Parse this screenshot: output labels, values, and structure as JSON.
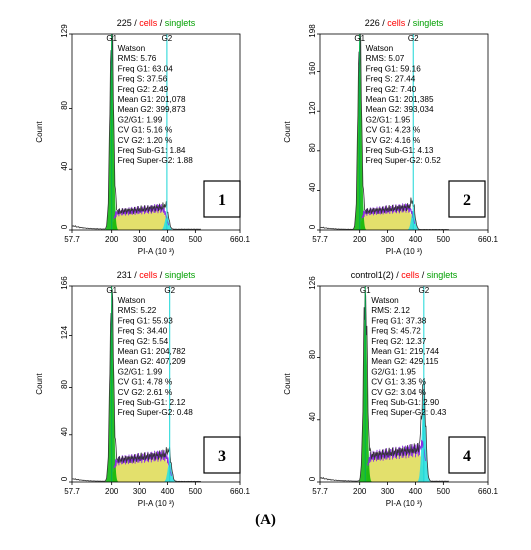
{
  "caption": "(A)",
  "colors": {
    "axis": "#000000",
    "g1_line": "#00b050",
    "g2_line": "#19d6d6",
    "g1_fill": "#00b400",
    "g1_fill_light": "#7fe07f",
    "s_fill": "#e3e06c",
    "s_outline": "#8a2be2",
    "g2_fill": "#2fe0e0",
    "histogram": "#333333",
    "title_red": "#ff0000",
    "title_green": "#00a000"
  },
  "chart_data": [
    {
      "type": "area",
      "panel_number": "1",
      "title_parts": [
        "225",
        "cells",
        "singlets"
      ],
      "title_sep": " / ",
      "xlabel": "PI-A",
      "xlabel_unit": "(10 ³)",
      "ylabel": "Count",
      "x_ticks": [
        "57.7",
        "200",
        "300",
        "400",
        "500",
        "660.1"
      ],
      "x_tick_values": [
        57.7,
        200,
        300,
        400,
        500,
        660.1
      ],
      "xlim": [
        57.7,
        660.1
      ],
      "y_ticks": [
        "0",
        "40",
        "80",
        "129"
      ],
      "y_tick_values": [
        0,
        40,
        80,
        129
      ],
      "ylim": [
        0,
        129
      ],
      "markers": [
        {
          "label": "G1",
          "x": 200
        },
        {
          "label": "G2",
          "x": 398
        }
      ],
      "g1_peak": {
        "x": 200,
        "height": 126
      },
      "g2_peak": {
        "x": 398,
        "height": 10
      },
      "s_level": 14,
      "stats": [
        "Watson",
        "RMS: 5.76",
        "Freq G1: 63.04",
        "Freq S: 37.56",
        "Freq G2: 2.49",
        "Mean G1: 201,078",
        "Mean G2: 399,873",
        "G2/G1: 1.99",
        "CV G1: 5.16 %",
        "CV G2: 1.20 %",
        "Freq Sub-G1: 1.84",
        "Freq Super-G2: 1.88"
      ]
    },
    {
      "type": "area",
      "panel_number": "2",
      "title_parts": [
        "226",
        "cells",
        "singlets"
      ],
      "title_sep": " / ",
      "xlabel": "PI-A",
      "xlabel_unit": "(10 ³)",
      "ylabel": "Count",
      "x_ticks": [
        "57.7",
        "200",
        "300",
        "400",
        "500",
        "660.1"
      ],
      "x_tick_values": [
        57.7,
        200,
        300,
        400,
        500,
        660.1
      ],
      "xlim": [
        57.7,
        660.1
      ],
      "y_ticks": [
        "0",
        "40",
        "80",
        "120",
        "160",
        "198"
      ],
      "y_tick_values": [
        0,
        40,
        80,
        120,
        160,
        198
      ],
      "ylim": [
        0,
        198
      ],
      "markers": [
        {
          "label": "G1",
          "x": 200
        },
        {
          "label": "G2",
          "x": 392
        }
      ],
      "g1_peak": {
        "x": 200,
        "height": 192
      },
      "g2_peak": {
        "x": 392,
        "height": 20
      },
      "s_level": 22,
      "stats": [
        "Watson",
        "RMS: 5.07",
        "Freq G1: 59.16",
        "Freq S: 27.44",
        "Freq G2: 7.40",
        "Mean G1: 201,385",
        "Mean G2: 393,034",
        "G2/G1: 1.95",
        "CV G1: 4.23 %",
        "CV G2: 4.16 %",
        "Freq Sub-G1: 4.13",
        "Freq Super-G2: 0.52"
      ]
    },
    {
      "type": "area",
      "panel_number": "3",
      "title_parts": [
        "231",
        "cells",
        "singlets"
      ],
      "title_sep": " / ",
      "xlabel": "PI-A",
      "xlabel_unit": "(10 ³)",
      "ylabel": "Count",
      "x_ticks": [
        "57.7",
        "200",
        "300",
        "400",
        "500",
        "660.1"
      ],
      "x_tick_values": [
        57.7,
        200,
        300,
        400,
        500,
        660.1
      ],
      "xlim": [
        57.7,
        660.1
      ],
      "y_ticks": [
        "0",
        "40",
        "80",
        "124",
        "166"
      ],
      "y_tick_values": [
        0,
        40,
        80,
        124,
        166
      ],
      "ylim": [
        0,
        166
      ],
      "markers": [
        {
          "label": "G1",
          "x": 200
        },
        {
          "label": "G2",
          "x": 408
        }
      ],
      "g1_peak": {
        "x": 200,
        "height": 152
      },
      "g2_peak": {
        "x": 408,
        "height": 18
      },
      "s_level": 22,
      "stats": [
        "Watson",
        "RMS: 5.22",
        "Freq G1: 55.93",
        "Freq S: 34.40",
        "Freq G2: 5.54",
        "Mean G1: 204,782",
        "Mean G2: 407,209",
        "G2/G1: 1.99",
        "CV G1: 4.78 %",
        "CV G2: 2.61 %",
        "Freq Sub-G1: 2.12",
        "Freq Super-G2: 0.48"
      ]
    },
    {
      "type": "area",
      "panel_number": "4",
      "title_parts": [
        "control1(2)",
        "cells",
        "singlets"
      ],
      "title_sep": " / ",
      "xlabel": "PI-A",
      "xlabel_unit": "(10 ³)",
      "ylabel": "Count",
      "x_ticks": [
        "57.7",
        "200",
        "300",
        "400",
        "500",
        "660.1"
      ],
      "x_tick_values": [
        57.7,
        200,
        300,
        400,
        500,
        660.1
      ],
      "xlim": [
        57.7,
        660.1
      ],
      "y_ticks": [
        "0",
        "40",
        "80",
        "126"
      ],
      "y_tick_values": [
        0,
        40,
        80,
        126
      ],
      "ylim": [
        0,
        126
      ],
      "markers": [
        {
          "label": "G1",
          "x": 220
        },
        {
          "label": "G2",
          "x": 430
        }
      ],
      "g1_peak": {
        "x": 220,
        "height": 120
      },
      "g2_peak": {
        "x": 430,
        "height": 56
      },
      "s_level": 20,
      "stats": [
        "Watson",
        "RMS: 2.12",
        "Freq G1: 37.38",
        "Freq S: 45.72",
        "Freq G2: 12.37",
        "Mean G1: 219,744",
        "Mean G2: 429,115",
        "G2/G1: 1.95",
        "CV G1: 3.35 %",
        "CV G2: 3.04 %",
        "Freq Sub-G1: 2.90",
        "Freq Super-G2: 0.43"
      ]
    }
  ]
}
